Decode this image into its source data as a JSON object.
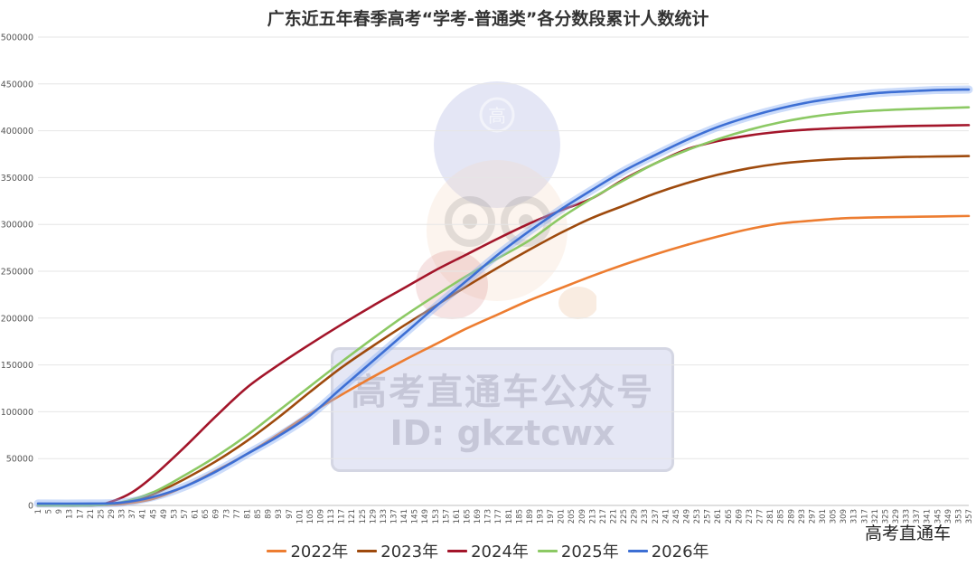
{
  "chart_data": {
    "type": "line",
    "title": "广东近五年春季高考“学考-普通类”各分数段累计人数统计",
    "xlabel": "",
    "ylabel": "",
    "xlim": [
      1,
      357
    ],
    "ylim": [
      0,
      500000
    ],
    "y_ticks": [
      "0",
      "50000",
      "100000",
      "150000",
      "200000",
      "250000",
      "300000",
      "350000",
      "400000",
      "450000",
      "500000"
    ],
    "x_tick_step": 4,
    "grid": "horizontal",
    "legend_position": "bottom",
    "series": [
      {
        "name": "2022年",
        "color": "#ED7D31",
        "x": [
          1,
          21,
          33,
          45,
          57,
          69,
          81,
          93,
          105,
          117,
          129,
          141,
          153,
          165,
          177,
          189,
          201,
          213,
          225,
          237,
          249,
          261,
          273,
          285,
          297,
          309,
          321,
          333,
          345,
          357
        ],
        "y": [
          0,
          0,
          1500,
          7000,
          20000,
          37000,
          55000,
          76000,
          98000,
          118000,
          137000,
          155000,
          172000,
          189000,
          204000,
          219000,
          232000,
          245000,
          257000,
          268000,
          278000,
          287000,
          295000,
          301000,
          304000,
          306500,
          307500,
          308000,
          308500,
          309000
        ]
      },
      {
        "name": "2023年",
        "color": "#9E4A0D",
        "x": [
          1,
          21,
          33,
          45,
          57,
          69,
          81,
          93,
          105,
          117,
          129,
          141,
          153,
          165,
          177,
          189,
          201,
          213,
          225,
          237,
          249,
          261,
          273,
          285,
          297,
          309,
          321,
          333,
          345,
          357
        ],
        "y": [
          0,
          0,
          3000,
          12000,
          28000,
          47000,
          69000,
          94000,
          121000,
          147000,
          170000,
          192000,
          213000,
          234000,
          254000,
          273000,
          291000,
          307000,
          320000,
          333000,
          344000,
          353000,
          360000,
          365000,
          368000,
          370000,
          371000,
          372000,
          372500,
          373000
        ]
      },
      {
        "name": "2024年",
        "color": "#A3152A",
        "x": [
          1,
          21,
          29,
          37,
          45,
          57,
          69,
          81,
          93,
          105,
          117,
          129,
          141,
          153,
          165,
          177,
          189,
          201,
          213,
          225,
          237,
          249,
          261,
          273,
          285,
          297,
          309,
          321,
          333,
          345,
          357
        ],
        "y": [
          0,
          0,
          4000,
          14000,
          31000,
          62000,
          95000,
          126000,
          150000,
          172000,
          193000,
          213000,
          232000,
          251000,
          268000,
          285000,
          301000,
          315000,
          328000,
          348000,
          365000,
          380000,
          389000,
          395000,
          399000,
          401500,
          403000,
          404000,
          405000,
          405500,
          406000
        ]
      },
      {
        "name": "2025年",
        "color": "#8CC964",
        "x": [
          1,
          21,
          33,
          45,
          57,
          69,
          81,
          93,
          105,
          117,
          129,
          141,
          153,
          165,
          177,
          189,
          201,
          213,
          225,
          237,
          249,
          261,
          273,
          285,
          297,
          309,
          321,
          333,
          345,
          357
        ],
        "y": [
          0,
          0,
          3500,
          14000,
          32000,
          52000,
          75000,
          101000,
          127000,
          153000,
          178000,
          202000,
          224000,
          245000,
          264000,
          283000,
          307000,
          328000,
          347000,
          365000,
          379000,
          391000,
          401000,
          409000,
          415000,
          419000,
          421500,
          423000,
          424000,
          425000
        ]
      },
      {
        "name": "2026年",
        "color": "#3D6FD4",
        "x": [
          1,
          21,
          33,
          45,
          57,
          69,
          81,
          93,
          105,
          117,
          129,
          141,
          153,
          165,
          177,
          189,
          201,
          213,
          225,
          237,
          249,
          261,
          273,
          285,
          297,
          309,
          321,
          333,
          345,
          357
        ],
        "y": [
          2000,
          2000,
          3000,
          9000,
          20000,
          36000,
          55000,
          74000,
          96000,
          125000,
          154000,
          183000,
          212000,
          240000,
          268000,
          293000,
          316000,
          337000,
          357000,
          374000,
          390000,
          404000,
          415000,
          424000,
          431000,
          436000,
          440000,
          442000,
          443500,
          444000
        ]
      }
    ]
  },
  "watermark": {
    "badge_line1": "高考直通车公众号",
    "badge_line2": "ID: gkztcwx",
    "cap_char": "高",
    "corner_text": "高考直通车"
  }
}
